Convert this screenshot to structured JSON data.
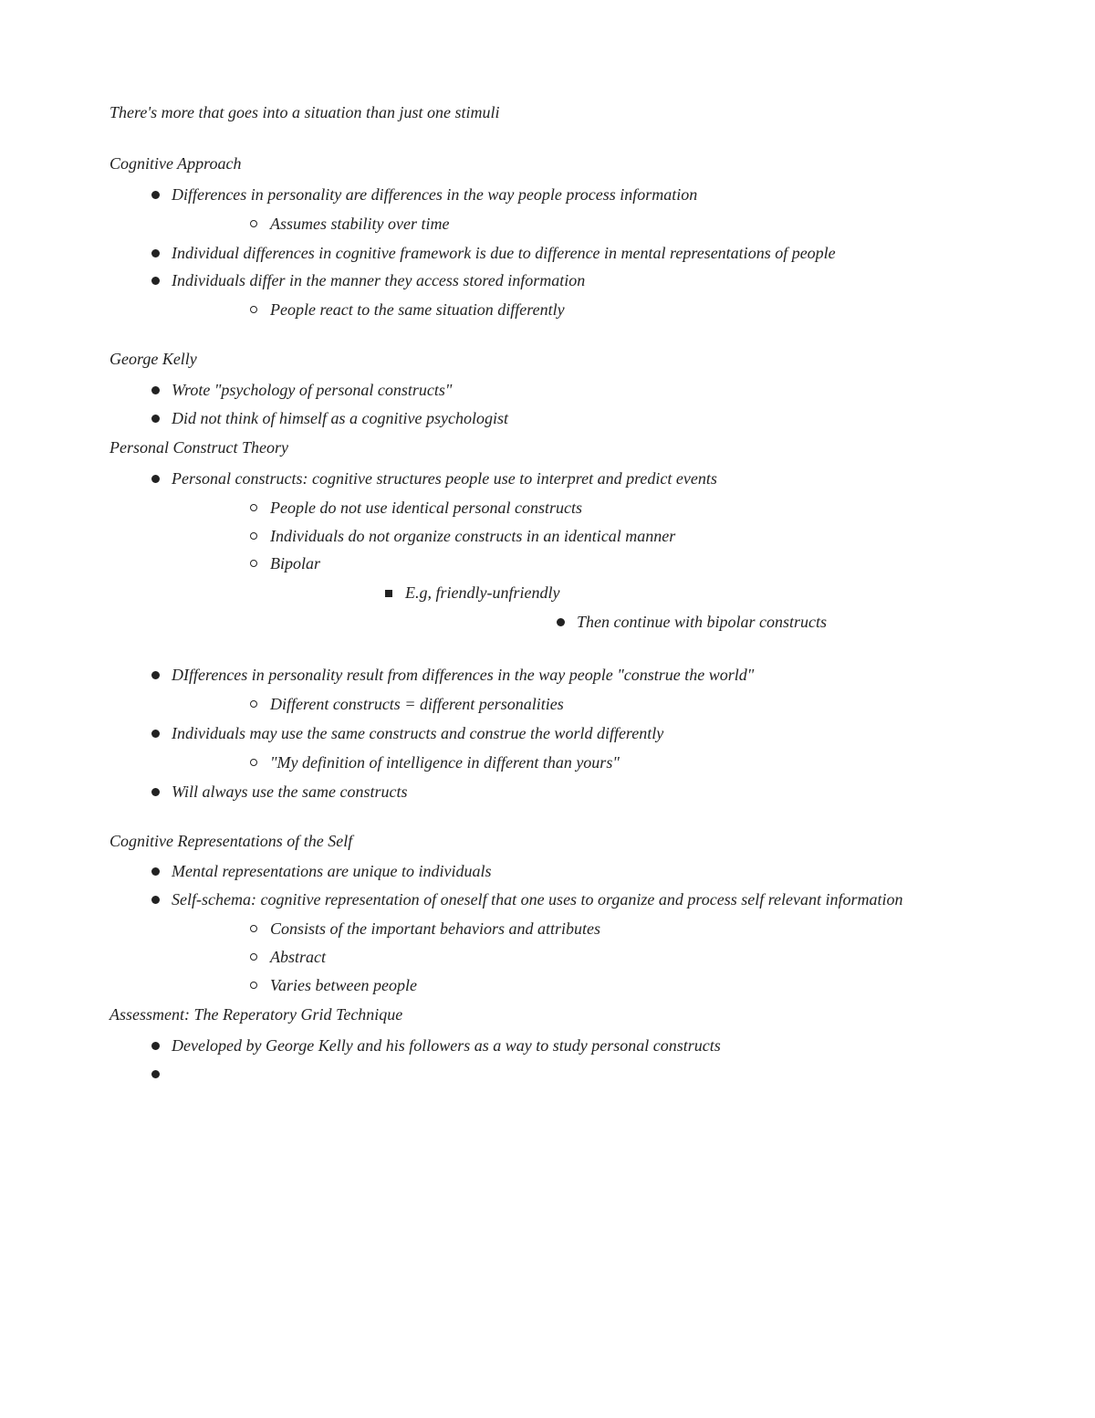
{
  "intro": "There's more that goes into a situation than just one stimuli",
  "sections": {
    "cognitive_approach": {
      "heading": "Cognitive Approach",
      "b1": "Differences in personality are differences in the way people process information",
      "b1a": "Assumes stability over time",
      "b2": "Individual differences in cognitive framework is due to difference in mental representations of people",
      "b3": "Individuals differ in the manner they access stored information",
      "b3a": "People react to the same situation differently"
    },
    "george_kelly": {
      "heading": "George Kelly",
      "b1": "Wrote \"psychology of personal constructs\"",
      "b2": "Did not think of himself as a cognitive psychologist"
    },
    "pct": {
      "heading": "Personal Construct Theory",
      "b1": "Personal constructs:  cognitive structures people use to interpret and predict events",
      "b1a": "People do not use identical personal constructs",
      "b1b": "Individuals do not organize constructs in an identical manner",
      "b1c": "Bipolar",
      "b1c_i": "E.g, friendly-unfriendly",
      "b1c_i_1": "Then continue with bipolar constructs",
      "b2": "DIfferences in personality result from differences in the way people \"construe the world\"",
      "b2a": "Different constructs = different personalities",
      "b3": "Individuals may use the same constructs and construe the world differently",
      "b3a": "\"My definition of intelligence in different than yours\"",
      "b4": "Will always use the same constructs"
    },
    "cog_self": {
      "heading": "Cognitive Representations of the Self",
      "b1": "Mental representations are unique to individuals",
      "b2": "Self-schema: cognitive representation of oneself that one uses to organize and process self relevant information",
      "b2a": "Consists of the important behaviors and attributes",
      "b2b": "Abstract",
      "b2c": "Varies between people"
    },
    "assessment": {
      "heading": "Assessment: The Reperatory Grid Technique",
      "b1": "Developed by George Kelly and his followers as a way to study personal constructs",
      "b2": ""
    }
  }
}
